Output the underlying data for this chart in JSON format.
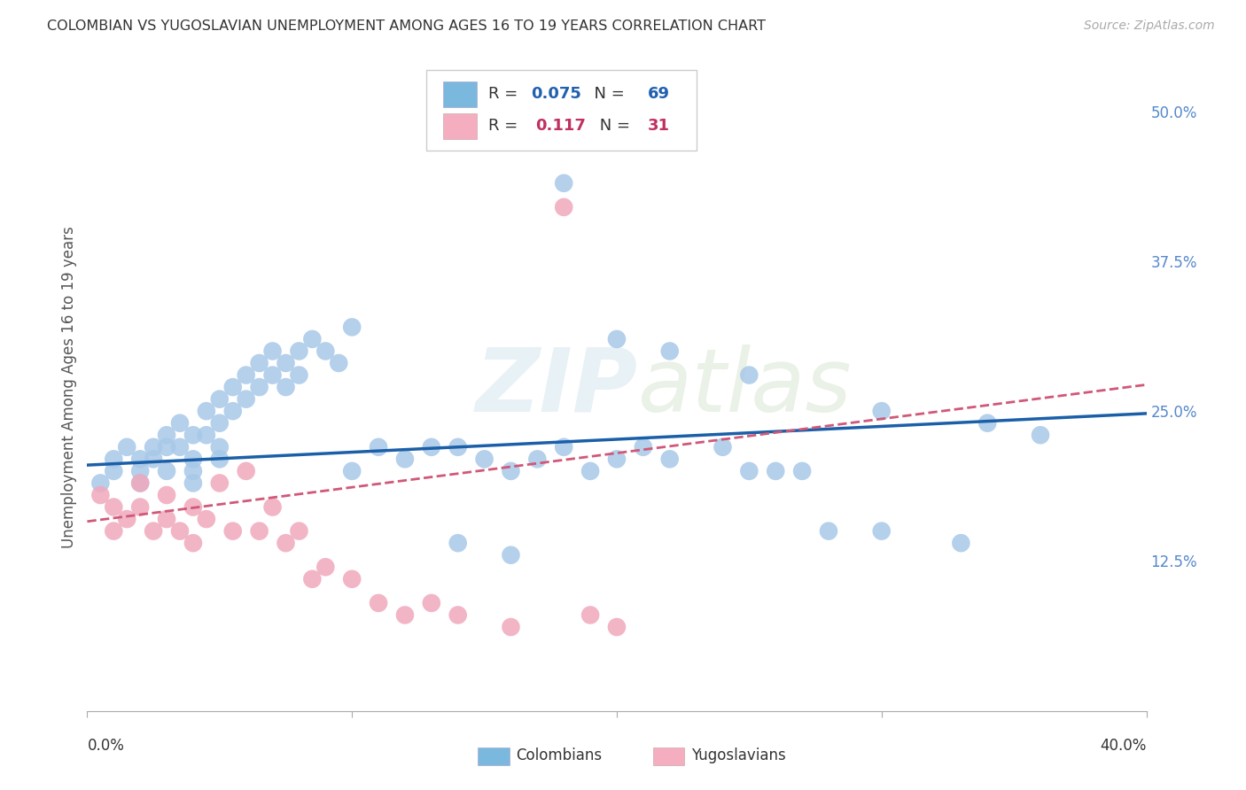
{
  "title": "COLOMBIAN VS YUGOSLAVIAN UNEMPLOYMENT AMONG AGES 16 TO 19 YEARS CORRELATION CHART",
  "source": "Source: ZipAtlas.com",
  "ylabel": "Unemployment Among Ages 16 to 19 years",
  "ytick_labels": [
    "12.5%",
    "25.0%",
    "37.5%",
    "50.0%"
  ],
  "ytick_values": [
    0.125,
    0.25,
    0.375,
    0.5
  ],
  "xlim": [
    0.0,
    0.4
  ],
  "ylim": [
    0.0,
    0.54
  ],
  "colombian_R": 0.075,
  "colombian_N": 69,
  "yugoslavian_R": 0.117,
  "yugoslavian_N": 31,
  "colombian_color": "#a8c8e8",
  "colombian_line_color": "#1a5fa8",
  "yugoslavian_color": "#f0a8bc",
  "yugoslavian_line_color": "#d05878",
  "watermark_zip": "ZIP",
  "watermark_atlas": "atlas",
  "background_color": "#ffffff",
  "grid_color": "#cccccc",
  "legend_color_blue": "#7ab8de",
  "legend_color_pink": "#f4aec0",
  "colombian_x": [
    0.005,
    0.01,
    0.01,
    0.015,
    0.02,
    0.02,
    0.02,
    0.025,
    0.025,
    0.03,
    0.03,
    0.03,
    0.035,
    0.035,
    0.04,
    0.04,
    0.04,
    0.04,
    0.045,
    0.045,
    0.05,
    0.05,
    0.05,
    0.05,
    0.055,
    0.055,
    0.06,
    0.06,
    0.065,
    0.065,
    0.07,
    0.07,
    0.075,
    0.075,
    0.08,
    0.08,
    0.085,
    0.09,
    0.095,
    0.1,
    0.1,
    0.11,
    0.12,
    0.13,
    0.14,
    0.15,
    0.16,
    0.17,
    0.18,
    0.19,
    0.2,
    0.21,
    0.22,
    0.24,
    0.25,
    0.26,
    0.27,
    0.28,
    0.3,
    0.33,
    0.2,
    0.22,
    0.25,
    0.3,
    0.34,
    0.14,
    0.16,
    0.18,
    0.36
  ],
  "colombian_y": [
    0.19,
    0.21,
    0.2,
    0.22,
    0.2,
    0.21,
    0.19,
    0.22,
    0.21,
    0.23,
    0.2,
    0.22,
    0.24,
    0.22,
    0.21,
    0.23,
    0.2,
    0.19,
    0.25,
    0.23,
    0.26,
    0.24,
    0.22,
    0.21,
    0.27,
    0.25,
    0.28,
    0.26,
    0.29,
    0.27,
    0.3,
    0.28,
    0.29,
    0.27,
    0.3,
    0.28,
    0.31,
    0.3,
    0.29,
    0.32,
    0.2,
    0.22,
    0.21,
    0.22,
    0.22,
    0.21,
    0.2,
    0.21,
    0.22,
    0.2,
    0.21,
    0.22,
    0.21,
    0.22,
    0.2,
    0.2,
    0.2,
    0.15,
    0.15,
    0.14,
    0.31,
    0.3,
    0.28,
    0.25,
    0.24,
    0.14,
    0.13,
    0.44,
    0.23
  ],
  "yugoslavian_x": [
    0.005,
    0.01,
    0.01,
    0.015,
    0.02,
    0.02,
    0.025,
    0.03,
    0.03,
    0.035,
    0.04,
    0.04,
    0.045,
    0.05,
    0.055,
    0.06,
    0.065,
    0.07,
    0.075,
    0.08,
    0.085,
    0.09,
    0.1,
    0.11,
    0.12,
    0.13,
    0.14,
    0.16,
    0.18,
    0.19,
    0.2
  ],
  "yugoslavian_y": [
    0.18,
    0.17,
    0.15,
    0.16,
    0.19,
    0.17,
    0.15,
    0.18,
    0.16,
    0.15,
    0.17,
    0.14,
    0.16,
    0.19,
    0.15,
    0.2,
    0.15,
    0.17,
    0.14,
    0.15,
    0.11,
    0.12,
    0.11,
    0.09,
    0.08,
    0.09,
    0.08,
    0.07,
    0.42,
    0.08,
    0.07
  ],
  "xtick_positions": [
    0.0,
    0.1,
    0.2,
    0.3,
    0.4
  ],
  "title_fontsize": 11.5,
  "source_fontsize": 10,
  "axis_fontsize": 12,
  "legend_fontsize": 13
}
